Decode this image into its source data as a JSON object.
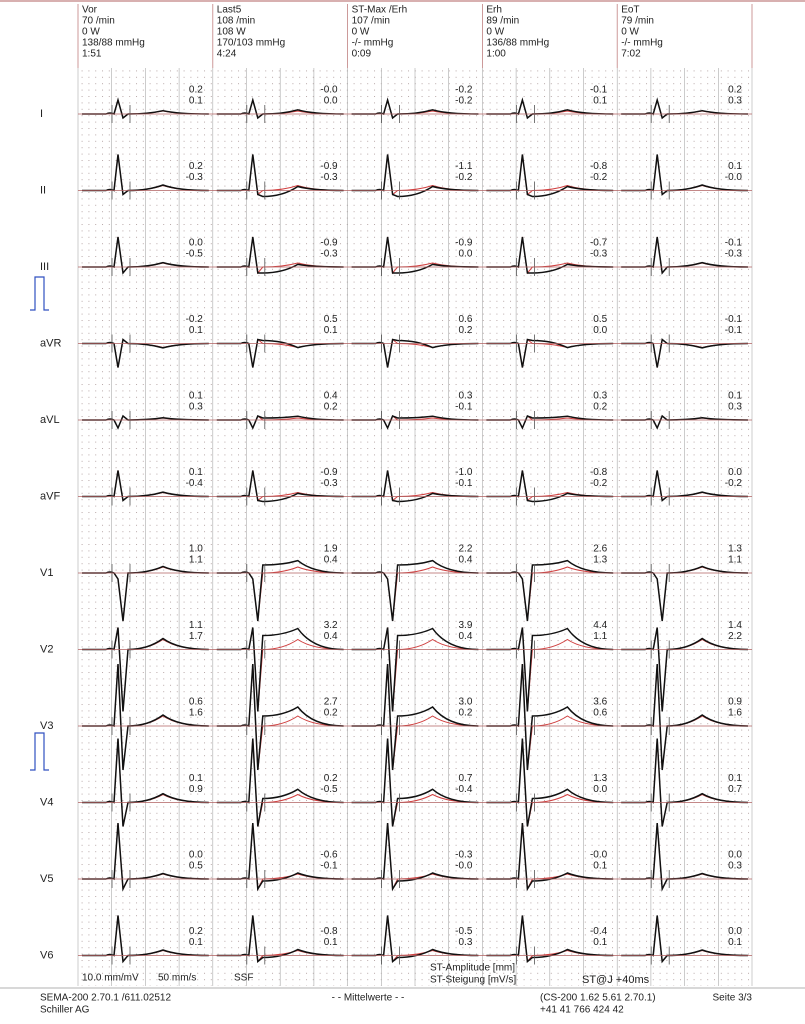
{
  "columns": [
    {
      "name": "Vor",
      "lines": [
        "70 /min",
        "0 W",
        "138/88 mmHg",
        "1:51"
      ]
    },
    {
      "name": "Last5",
      "lines": [
        "108 /min",
        "108 W",
        "170/103 mmHg",
        "4:24"
      ]
    },
    {
      "name": "ST-Max /Erh",
      "lines": [
        "107 /min",
        "0 W",
        "-/- mmHg",
        "0:09"
      ]
    },
    {
      "name": "Erh",
      "lines": [
        "89 /min",
        "0 W",
        "136/88 mmHg",
        "1:00"
      ]
    },
    {
      "name": "EoT",
      "lines": [
        "79 /min",
        "0 W",
        "-/- mmHg",
        "7:02"
      ]
    }
  ],
  "leads": [
    {
      "name": "I",
      "values": [
        [
          "0.2",
          "0.1"
        ],
        [
          "-0.0",
          "0.0"
        ],
        [
          "-0.2",
          "-0.2"
        ],
        [
          "-0.1",
          "0.1"
        ],
        [
          "0.2",
          "0.3"
        ]
      ]
    },
    {
      "name": "II",
      "values": [
        [
          "0.2",
          "-0.3"
        ],
        [
          "-0.9",
          "-0.3"
        ],
        [
          "-1.1",
          "-0.2"
        ],
        [
          "-0.8",
          "-0.2"
        ],
        [
          "0.1",
          "-0.0"
        ]
      ]
    },
    {
      "name": "III",
      "values": [
        [
          "0.0",
          "-0.5"
        ],
        [
          "-0.9",
          "-0.3"
        ],
        [
          "-0.9",
          "0.0"
        ],
        [
          "-0.7",
          "-0.3"
        ],
        [
          "-0.1",
          "-0.3"
        ]
      ]
    },
    {
      "name": "aVR",
      "values": [
        [
          "-0.2",
          "0.1"
        ],
        [
          "0.5",
          "0.1"
        ],
        [
          "0.6",
          "0.2"
        ],
        [
          "0.5",
          "0.0"
        ],
        [
          "-0.1",
          "-0.1"
        ]
      ]
    },
    {
      "name": "aVL",
      "values": [
        [
          "0.1",
          "0.3"
        ],
        [
          "0.4",
          "0.2"
        ],
        [
          "0.3",
          "-0.1"
        ],
        [
          "0.3",
          "0.2"
        ],
        [
          "0.1",
          "0.3"
        ]
      ]
    },
    {
      "name": "aVF",
      "values": [
        [
          "0.1",
          "-0.4"
        ],
        [
          "-0.9",
          "-0.3"
        ],
        [
          "-1.0",
          "-0.1"
        ],
        [
          "-0.8",
          "-0.2"
        ],
        [
          "0.0",
          "-0.2"
        ]
      ]
    },
    {
      "name": "V1",
      "values": [
        [
          "1.0",
          "1.1"
        ],
        [
          "1.9",
          "0.4"
        ],
        [
          "2.2",
          "0.4"
        ],
        [
          "2.6",
          "1.3"
        ],
        [
          "1.3",
          "1.1"
        ]
      ]
    },
    {
      "name": "V2",
      "values": [
        [
          "1.1",
          "1.7"
        ],
        [
          "3.2",
          "0.4"
        ],
        [
          "3.9",
          "0.4"
        ],
        [
          "4.4",
          "1.1"
        ],
        [
          "1.4",
          "2.2"
        ]
      ]
    },
    {
      "name": "V3",
      "values": [
        [
          "0.6",
          "1.6"
        ],
        [
          "2.7",
          "0.2"
        ],
        [
          "3.0",
          "0.2"
        ],
        [
          "3.6",
          "0.6"
        ],
        [
          "0.9",
          "1.6"
        ]
      ]
    },
    {
      "name": "V4",
      "values": [
        [
          "0.1",
          "0.9"
        ],
        [
          "0.2",
          "-0.5"
        ],
        [
          "0.7",
          "-0.4"
        ],
        [
          "1.3",
          "0.0"
        ],
        [
          "0.1",
          "0.7"
        ]
      ]
    },
    {
      "name": "V5",
      "values": [
        [
          "0.0",
          "0.5"
        ],
        [
          "-0.6",
          "-0.1"
        ],
        [
          "-0.3",
          "-0.0"
        ],
        [
          "-0.0",
          "0.1"
        ],
        [
          "0.0",
          "0.3"
        ]
      ]
    },
    {
      "name": "V6",
      "values": [
        [
          "0.2",
          "0.1"
        ],
        [
          "-0.8",
          "0.1"
        ],
        [
          "-0.5",
          "0.3"
        ],
        [
          "-0.4",
          "0.1"
        ],
        [
          "0.0",
          "0.1"
        ]
      ]
    }
  ],
  "settings": {
    "gain": "10.0 mm/mV",
    "speed": "50 mm/s",
    "filter": "SSF",
    "legend_amplitude": "ST-Amplitude [mm]",
    "legend_slope": "ST-Steigung [mV/s]",
    "measure_point": "ST@J +40ms"
  },
  "footer": {
    "software": "SEMA-200 2.70.1 /611.02512",
    "company": "Schiller AG",
    "center": "- - Mittelwerte - -",
    "device": "(CS-200  1.62 5.61 2.70.1)",
    "phone": "+41 41 766 424 42",
    "page": "Seite 3/3"
  }
}
